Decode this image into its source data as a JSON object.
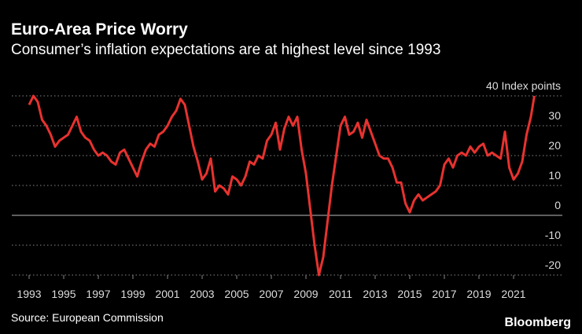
{
  "chart_data": {
    "type": "line",
    "title": "Euro-Area Price Worry",
    "subtitle": "Consumer’s inflation expectations are at highest level since 1993",
    "source": "Source: European Commission",
    "brand": "Bloomberg",
    "x": [
      1993.0,
      1993.25,
      1993.5,
      1993.75,
      1994.0,
      1994.25,
      1994.5,
      1994.75,
      1995.0,
      1995.25,
      1995.5,
      1995.75,
      1996.0,
      1996.25,
      1996.5,
      1996.75,
      1997.0,
      1997.25,
      1997.5,
      1997.75,
      1998.0,
      1998.25,
      1998.5,
      1998.75,
      1999.0,
      1999.25,
      1999.5,
      1999.75,
      2000.0,
      2000.25,
      2000.5,
      2000.75,
      2001.0,
      2001.25,
      2001.5,
      2001.75,
      2002.0,
      2002.25,
      2002.5,
      2002.75,
      2003.0,
      2003.25,
      2003.5,
      2003.75,
      2004.0,
      2004.25,
      2004.5,
      2004.75,
      2005.0,
      2005.25,
      2005.5,
      2005.75,
      2006.0,
      2006.25,
      2006.5,
      2006.75,
      2007.0,
      2007.25,
      2007.5,
      2007.75,
      2008.0,
      2008.25,
      2008.5,
      2008.75,
      2009.0,
      2009.25,
      2009.5,
      2009.75,
      2010.0,
      2010.25,
      2010.5,
      2010.75,
      2011.0,
      2011.25,
      2011.5,
      2011.75,
      2012.0,
      2012.25,
      2012.5,
      2012.75,
      2013.0,
      2013.25,
      2013.5,
      2013.75,
      2014.0,
      2014.25,
      2014.5,
      2014.75,
      2015.0,
      2015.25,
      2015.5,
      2015.75,
      2016.0,
      2016.25,
      2016.5,
      2016.75,
      2017.0,
      2017.25,
      2017.5,
      2017.75,
      2018.0,
      2018.25,
      2018.5,
      2018.75,
      2019.0,
      2019.25,
      2019.5,
      2019.75,
      2020.0,
      2020.25,
      2020.5,
      2020.75,
      2021.0,
      2021.25,
      2021.5,
      2021.75,
      2022.0,
      2022.2
    ],
    "series": [
      {
        "name": "Consumer inflation expectations",
        "color": "#e8322f",
        "values": [
          37,
          40,
          38,
          32,
          30,
          27,
          23,
          25,
          26,
          27,
          30,
          33,
          28,
          26,
          25,
          22,
          20,
          21,
          20,
          18,
          17,
          21,
          22,
          19,
          16,
          13,
          18,
          22,
          24,
          23,
          27,
          28,
          30,
          33,
          35,
          39,
          37,
          30,
          23,
          18,
          12,
          14,
          19,
          8,
          10,
          9,
          7,
          13,
          12,
          10,
          13,
          18,
          17,
          20,
          19,
          25,
          27,
          31,
          22,
          29,
          33,
          30,
          33,
          22,
          14,
          2,
          -10,
          -20,
          -14,
          -2,
          10,
          20,
          30,
          33,
          27,
          28,
          31,
          26,
          32,
          28,
          24,
          20,
          19,
          19,
          16,
          11,
          11,
          4,
          1,
          5,
          7,
          5,
          6,
          7,
          8,
          10,
          17,
          19,
          16,
          20,
          21,
          20,
          23,
          21,
          23,
          24,
          20,
          21,
          20,
          19,
          28,
          16,
          12,
          14,
          18,
          27,
          33,
          40
        ]
      }
    ],
    "xlim": [
      1992,
      2022.7
    ],
    "xticks": [
      1993,
      1995,
      1997,
      1999,
      2001,
      2003,
      2005,
      2007,
      2009,
      2011,
      2013,
      2015,
      2017,
      2019,
      2021
    ],
    "ylim": [
      -22,
      43
    ],
    "yticks": [
      {
        "value": 40,
        "label": "40 Index points"
      },
      30,
      20,
      10,
      0,
      -10,
      -20
    ],
    "grid": true
  }
}
